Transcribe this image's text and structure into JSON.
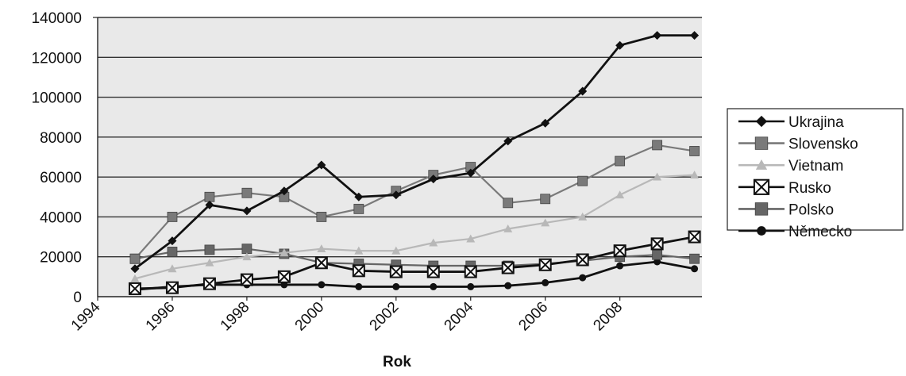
{
  "chart_data": {
    "type": "line",
    "title": "",
    "xlabel": "Rok",
    "ylabel": "",
    "x": [
      1995,
      1996,
      1997,
      1998,
      1999,
      2000,
      2001,
      2002,
      2003,
      2004,
      2005,
      2006,
      2007,
      2008,
      2009,
      2010
    ],
    "x_tick_labels": [
      "1994",
      "1996",
      "1998",
      "2000",
      "2002",
      "2004",
      "2006",
      "2008"
    ],
    "x_tick_values": [
      1994,
      1996,
      1998,
      2000,
      2002,
      2004,
      2006,
      2008
    ],
    "xlim": [
      1994,
      2010.2
    ],
    "y_tick_labels": [
      "0",
      "20000",
      "40000",
      "60000",
      "80000",
      "100000",
      "120000",
      "140000"
    ],
    "ylim": [
      0,
      140000
    ],
    "grid": "horizontal",
    "legend_position": "right",
    "series": [
      {
        "name": "Ukrajina",
        "marker": "diamond",
        "color": "#111111",
        "dash": "",
        "values": [
          14000,
          28000,
          46000,
          43000,
          53000,
          66000,
          50000,
          51000,
          59000,
          62000,
          78000,
          87000,
          103000,
          126000,
          131000,
          131000
        ]
      },
      {
        "name": "Slovensko",
        "marker": "square",
        "color": "#7a7a7a",
        "dash": "",
        "values": [
          19000,
          40000,
          50000,
          52000,
          50000,
          40000,
          44000,
          53000,
          61000,
          65000,
          47000,
          49000,
          58000,
          68000,
          76000,
          73000
        ]
      },
      {
        "name": "Vietnam",
        "marker": "triangle",
        "color": "#b8b8b8",
        "dash": "",
        "values": [
          9000,
          14000,
          17000,
          20000,
          22000,
          24000,
          23000,
          23000,
          27000,
          29000,
          34000,
          37000,
          40000,
          51000,
          60000,
          61000
        ]
      },
      {
        "name": "Rusko",
        "marker": "xbox",
        "color": "#111111",
        "dash": "",
        "values": [
          4000,
          4500,
          6500,
          8500,
          10000,
          17000,
          13000,
          12500,
          12500,
          12500,
          14500,
          16000,
          18500,
          23000,
          26500,
          30000
        ]
      },
      {
        "name": "Polsko",
        "marker": "square",
        "color": "#666666",
        "dash": "",
        "values": [
          19000,
          22500,
          23500,
          24000,
          21500,
          17000,
          16500,
          16000,
          15500,
          15500,
          15500,
          16500,
          18000,
          20000,
          21000,
          19000
        ]
      },
      {
        "name": "Německo",
        "marker": "circle",
        "color": "#111111",
        "dash": "",
        "values": [
          3500,
          5000,
          6000,
          6000,
          6000,
          6000,
          5000,
          5000,
          5000,
          5000,
          5500,
          7000,
          9500,
          15500,
          17500,
          14000
        ]
      }
    ]
  }
}
